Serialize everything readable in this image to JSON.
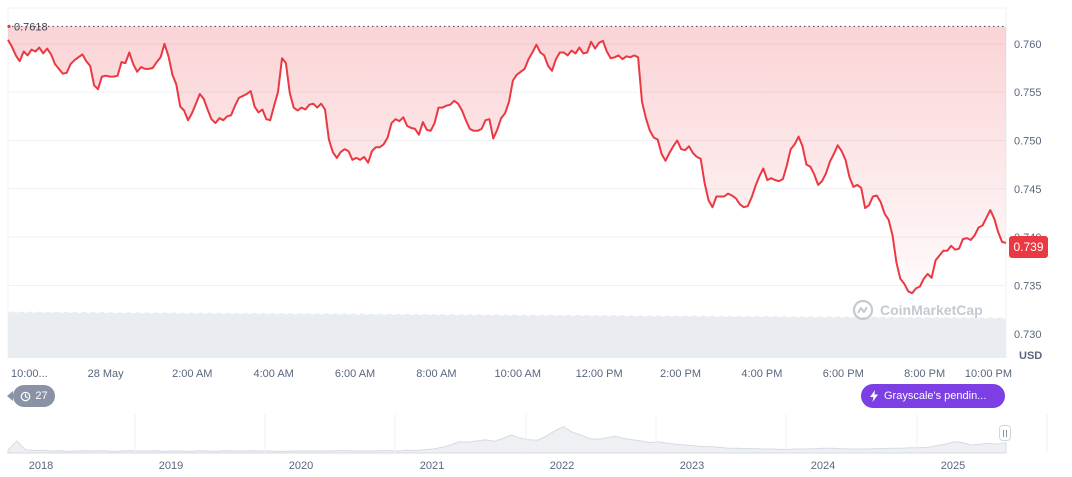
{
  "chart_data": {
    "type": "area",
    "currency_label": "USD",
    "reference_price_label": "0.7618",
    "reference_price": 0.7618,
    "current_price_label": "0.739",
    "current_price": 0.739,
    "y_ticks": [
      "0.760",
      "0.755",
      "0.750",
      "0.745",
      "0.740",
      "0.735",
      "0.730"
    ],
    "y_tick_values": [
      0.76,
      0.755,
      0.75,
      0.745,
      0.74,
      0.735,
      0.73
    ],
    "ylim": [
      0.7275,
      0.7637
    ],
    "x_ticks": [
      "10:00...",
      "28 May",
      "2:00 AM",
      "4:00 AM",
      "6:00 AM",
      "8:00 AM",
      "10:00 AM",
      "12:00 PM",
      "2:00 PM",
      "4:00 PM",
      "6:00 PM",
      "8:00 PM",
      "10:00 PM"
    ],
    "x_tick_hours": [
      0,
      2.4,
      4.53,
      6.53,
      8.53,
      10.53,
      12.53,
      14.53,
      16.53,
      18.53,
      20.53,
      22.53,
      24.53
    ],
    "xlim": [
      0,
      24.53
    ],
    "line_color": "#ea3943",
    "series": [
      {
        "values": [
          0.7604,
          0.7597,
          0.7588,
          0.7582,
          0.7592,
          0.7588,
          0.7594,
          0.7592,
          0.7596,
          0.759,
          0.7595,
          0.7589,
          0.7579,
          0.7574,
          0.7569,
          0.757,
          0.7579,
          0.7583,
          0.7586,
          0.7589,
          0.7582,
          0.7577,
          0.7557,
          0.7553,
          0.7566,
          0.7567,
          0.7566,
          0.7566,
          0.7567,
          0.7581,
          0.758,
          0.7591,
          0.7579,
          0.7571,
          0.7576,
          0.7574,
          0.7574,
          0.7575,
          0.7581,
          0.7586,
          0.76,
          0.7587,
          0.7568,
          0.7558,
          0.7535,
          0.7531,
          0.7521,
          0.7528,
          0.7538,
          0.7548,
          0.7543,
          0.7532,
          0.7522,
          0.7518,
          0.7523,
          0.7521,
          0.7525,
          0.7526,
          0.7536,
          0.7544,
          0.7546,
          0.7548,
          0.7551,
          0.7535,
          0.7529,
          0.7532,
          0.7522,
          0.7521,
          0.7536,
          0.755,
          0.7585,
          0.758,
          0.7549,
          0.7534,
          0.7531,
          0.7534,
          0.7532,
          0.7537,
          0.7538,
          0.7534,
          0.7538,
          0.7532,
          0.7501,
          0.7488,
          0.7482,
          0.7488,
          0.7491,
          0.7489,
          0.748,
          0.7482,
          0.748,
          0.7483,
          0.7477,
          0.7489,
          0.7493,
          0.7493,
          0.7496,
          0.7503,
          0.7518,
          0.7522,
          0.752,
          0.7524,
          0.7515,
          0.7513,
          0.7512,
          0.7506,
          0.7519,
          0.7511,
          0.751,
          0.7518,
          0.7534,
          0.7534,
          0.7536,
          0.7537,
          0.7541,
          0.7538,
          0.7531,
          0.7521,
          0.7512,
          0.751,
          0.751,
          0.7512,
          0.7521,
          0.7522,
          0.7502,
          0.7511,
          0.7523,
          0.7528,
          0.754,
          0.7562,
          0.7568,
          0.7571,
          0.7574,
          0.7584,
          0.7591,
          0.7599,
          0.7591,
          0.7588,
          0.7577,
          0.7572,
          0.7584,
          0.7591,
          0.7591,
          0.7588,
          0.7593,
          0.759,
          0.7596,
          0.759,
          0.7591,
          0.7602,
          0.7595,
          0.7601,
          0.7603,
          0.7592,
          0.7585,
          0.7586,
          0.7588,
          0.7584,
          0.7587,
          0.7586,
          0.7588,
          0.7586,
          0.754,
          0.7523,
          0.751,
          0.7503,
          0.7501,
          0.7486,
          0.7479,
          0.7487,
          0.7494,
          0.75,
          0.7491,
          0.749,
          0.7494,
          0.7487,
          0.7483,
          0.7481,
          0.7456,
          0.7438,
          0.7431,
          0.7442,
          0.7442,
          0.7442,
          0.7445,
          0.7443,
          0.744,
          0.7434,
          0.7431,
          0.7432,
          0.7441,
          0.7453,
          0.7463,
          0.7471,
          0.7459,
          0.7461,
          0.7459,
          0.7458,
          0.746,
          0.7474,
          0.7491,
          0.7496,
          0.7504,
          0.7494,
          0.7475,
          0.7473,
          0.7465,
          0.7454,
          0.7458,
          0.7466,
          0.7478,
          0.7486,
          0.7495,
          0.7489,
          0.748,
          0.7462,
          0.7452,
          0.7454,
          0.7451,
          0.743,
          0.7433,
          0.7442,
          0.7443,
          0.7436,
          0.7424,
          0.7418,
          0.7402,
          0.7374,
          0.7357,
          0.7352,
          0.7344,
          0.7342,
          0.7347,
          0.7349,
          0.7357,
          0.7362,
          0.7358,
          0.7376,
          0.7381,
          0.7386,
          0.7386,
          0.7391,
          0.7387,
          0.7388,
          0.7398,
          0.7399,
          0.7397,
          0.7402,
          0.741,
          0.7412,
          0.742,
          0.7428,
          0.7419,
          0.7405,
          0.7395,
          0.7394
        ]
      }
    ],
    "volume_note": "",
    "navigator": {
      "year_labels": [
        "2018",
        "2019",
        "2020",
        "2021",
        "2022",
        "2023",
        "2024",
        "2025"
      ],
      "profile": [
        0.07,
        0.3,
        0.08,
        0.06,
        0.07,
        0.05,
        0.06,
        0.04,
        0.05,
        0.06,
        0.05,
        0.06,
        0.04,
        0.05,
        0.06,
        0.05,
        0.05,
        0.06,
        0.04,
        0.05,
        0.05,
        0.04,
        0.06,
        0.05,
        0.04,
        0.06,
        0.05,
        0.05,
        0.06,
        0.05,
        0.05,
        0.04,
        0.04,
        0.05,
        0.05,
        0.05,
        0.05,
        0.05,
        0.06,
        0.06,
        0.05,
        0.05,
        0.05,
        0.06,
        0.06,
        0.05,
        0.07,
        0.06,
        0.08,
        0.1,
        0.14,
        0.2,
        0.28,
        0.27,
        0.3,
        0.33,
        0.29,
        0.36,
        0.45,
        0.38,
        0.33,
        0.32,
        0.42,
        0.55,
        0.66,
        0.52,
        0.45,
        0.36,
        0.34,
        0.38,
        0.42,
        0.36,
        0.33,
        0.3,
        0.26,
        0.28,
        0.24,
        0.22,
        0.2,
        0.18,
        0.16,
        0.16,
        0.14,
        0.12,
        0.12,
        0.11,
        0.11,
        0.1,
        0.1,
        0.09,
        0.09,
        0.1,
        0.1,
        0.11,
        0.12,
        0.12,
        0.11,
        0.1,
        0.1,
        0.1,
        0.11,
        0.11,
        0.12,
        0.12,
        0.13,
        0.13,
        0.14,
        0.18,
        0.22,
        0.28,
        0.26,
        0.2,
        0.22,
        0.24,
        0.22,
        0.26
      ]
    }
  },
  "events_badge": {
    "count": "27",
    "icon": "history-clock-icon"
  },
  "news_badge": {
    "label": "Grayscale's pendin...",
    "icon": "lightning-icon",
    "color": "#7b3fe4"
  },
  "watermark": {
    "text": "CoinMarketCap"
  }
}
